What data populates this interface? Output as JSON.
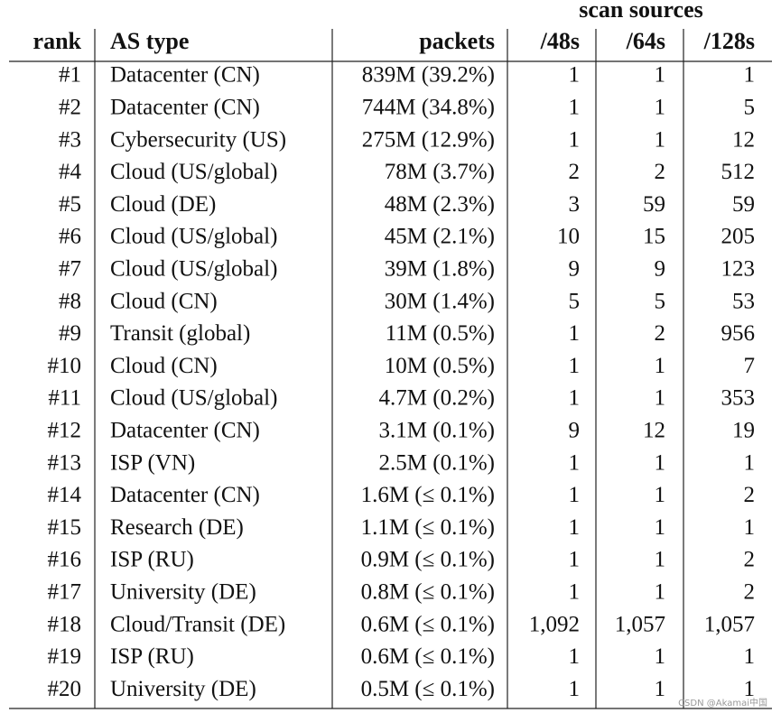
{
  "table": {
    "group_header": "scan sources",
    "headers": [
      "rank",
      "AS type",
      "packets",
      "/48s",
      "/64s",
      "/128s"
    ],
    "rows": [
      [
        "#1",
        "Datacenter (CN)",
        "839M (39.2%)",
        "1",
        "1",
        "1"
      ],
      [
        "#2",
        "Datacenter (CN)",
        "744M (34.8%)",
        "1",
        "1",
        "5"
      ],
      [
        "#3",
        "Cybersecurity (US)",
        "275M (12.9%)",
        "1",
        "1",
        "12"
      ],
      [
        "#4",
        "Cloud (US/global)",
        "78M (3.7%)",
        "2",
        "2",
        "512"
      ],
      [
        "#5",
        "Cloud (DE)",
        "48M (2.3%)",
        "3",
        "59",
        "59"
      ],
      [
        "#6",
        "Cloud (US/global)",
        "45M (2.1%)",
        "10",
        "15",
        "205"
      ],
      [
        "#7",
        "Cloud (US/global)",
        "39M (1.8%)",
        "9",
        "9",
        "123"
      ],
      [
        "#8",
        "Cloud (CN)",
        "30M (1.4%)",
        "5",
        "5",
        "53"
      ],
      [
        "#9",
        "Transit (global)",
        "11M (0.5%)",
        "1",
        "2",
        "956"
      ],
      [
        "#10",
        "Cloud (CN)",
        "10M (0.5%)",
        "1",
        "1",
        "7"
      ],
      [
        "#11",
        "Cloud (US/global)",
        "4.7M (0.2%)",
        "1",
        "1",
        "353"
      ],
      [
        "#12",
        "Datacenter (CN)",
        "3.1M (0.1%)",
        "9",
        "12",
        "19"
      ],
      [
        "#13",
        "ISP (VN)",
        "2.5M (0.1%)",
        "1",
        "1",
        "1"
      ],
      [
        "#14",
        "Datacenter (CN)",
        "1.6M (≤ 0.1%)",
        "1",
        "1",
        "2"
      ],
      [
        "#15",
        "Research (DE)",
        "1.1M (≤ 0.1%)",
        "1",
        "1",
        "1"
      ],
      [
        "#16",
        "ISP (RU)",
        "0.9M (≤ 0.1%)",
        "1",
        "1",
        "2"
      ],
      [
        "#17",
        "University (DE)",
        "0.8M (≤ 0.1%)",
        "1",
        "1",
        "2"
      ],
      [
        "#18",
        "Cloud/Transit (DE)",
        "0.6M (≤ 0.1%)",
        "1,092",
        "1,057",
        "1,057"
      ],
      [
        "#19",
        "ISP (RU)",
        "0.6M (≤ 0.1%)",
        "1",
        "1",
        "1"
      ],
      [
        "#20",
        "University (DE)",
        "0.5M (≤ 0.1%)",
        "1",
        "1",
        "1"
      ]
    ]
  },
  "watermark": "CSDN @Akamai中国"
}
